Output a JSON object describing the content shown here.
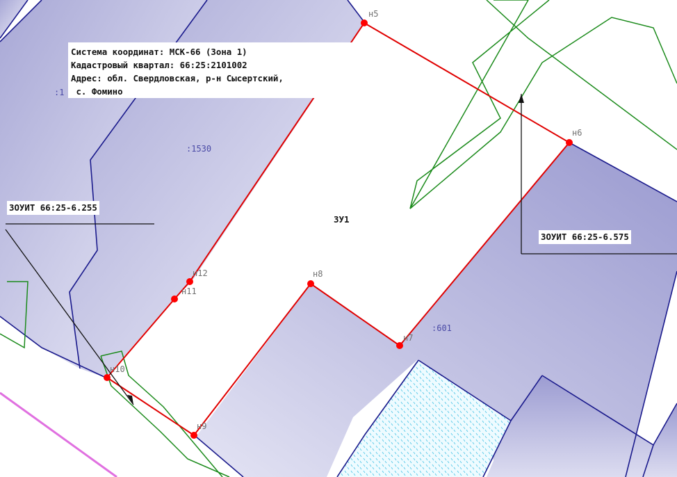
{
  "info_box": {
    "line1": "Система координат: МСК-66 (Зона 1)",
    "line2": "Кадастровый квартал: 66:25:2101002",
    "line3": "Адрес: обл. Свердловская, р-н Сысертский,",
    "line4": " с. Фомино"
  },
  "zones": {
    "left": "ЗОУИТ 66:25-6.255",
    "right": "ЗОУИТ 66:25-6.575"
  },
  "parcel_labels": {
    "p1530": ":1530",
    "p1": ":1",
    "p601": ":601",
    "zu1": "ЗУ1"
  },
  "points": {
    "n5": "н5",
    "n6": "н6",
    "n7": "н7",
    "n8": "н8",
    "n9": "н9",
    "n10": "н10",
    "n11": "н11",
    "n12": "н12"
  },
  "colors": {
    "boundary_red": "#e00000",
    "point_red": "#ff0000",
    "parcel_blue": "#1a1a8c",
    "parcel_fill": "#c8c8e4",
    "zone_green": "#1a8a1a",
    "road_magenta": "#e070e0",
    "hatch_cyan": "#40c8e8"
  }
}
